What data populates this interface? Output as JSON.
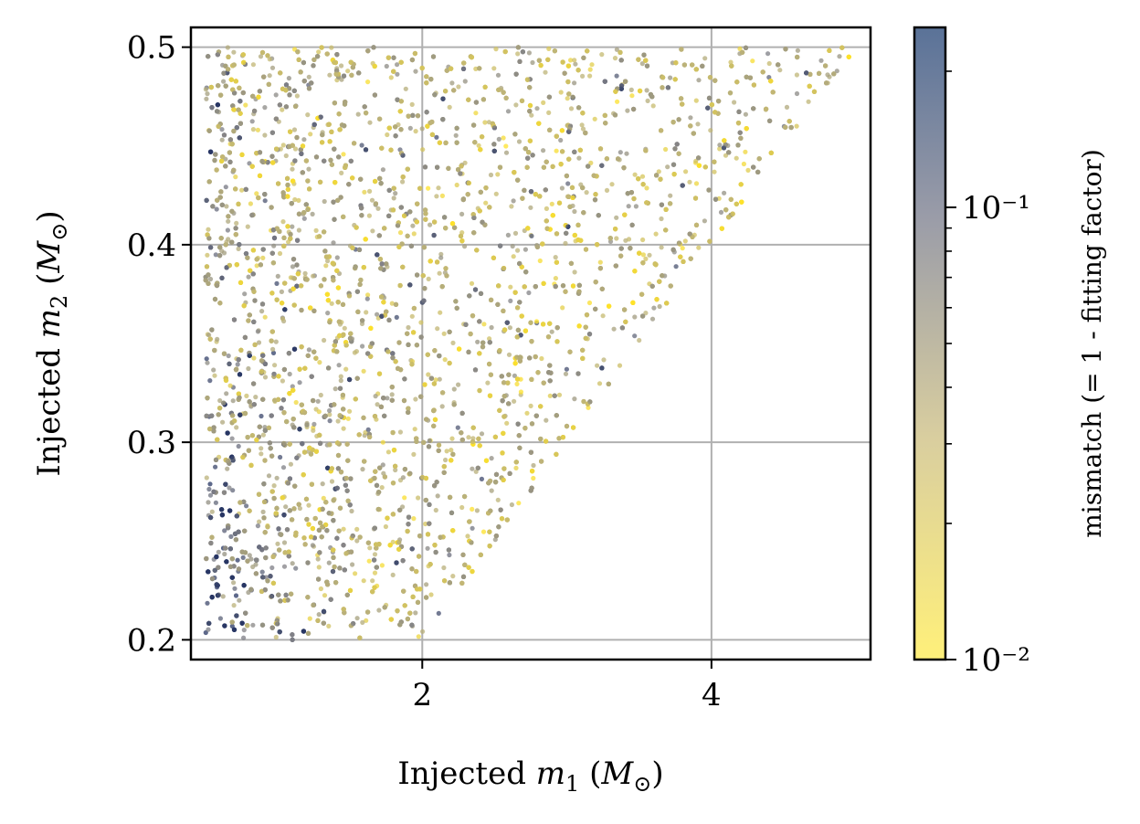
{
  "chart_data": {
    "type": "scatter",
    "title": "",
    "xlabel": "Injected m₁ (M⊙)",
    "ylabel": "Injected m₂ (M⊙)",
    "xlim": [
      0.4,
      5.1
    ],
    "ylim": [
      0.19,
      0.51
    ],
    "x_ticks": [
      2,
      4
    ],
    "y_ticks": [
      0.2,
      0.3,
      0.4,
      0.5
    ],
    "x_tick_labels": [
      "2",
      "4"
    ],
    "y_tick_labels": [
      "0.2",
      "0.3",
      "0.4",
      "0.5"
    ],
    "grid": true,
    "region": {
      "description": "injections cover 0.5 <= m1 <= 5, 0.2 <= m2 <= 0.5 with m2 >= 0.1*m1",
      "m1_range": [
        0.5,
        5.0
      ],
      "m2_range": [
        0.2,
        0.5
      ],
      "constraint_m2_over_m1_min": 0.1
    },
    "colorbar": {
      "label": "mismatch (= 1 - fitting factor)",
      "scale": "log",
      "range": [
        0.01,
        0.25
      ],
      "tick_labels": [
        "10⁻²",
        "10⁻¹"
      ],
      "tick_values": [
        0.01,
        0.1
      ],
      "colormap_low": "#fff07a",
      "colormap_high": "#2b3d6e"
    }
  }
}
